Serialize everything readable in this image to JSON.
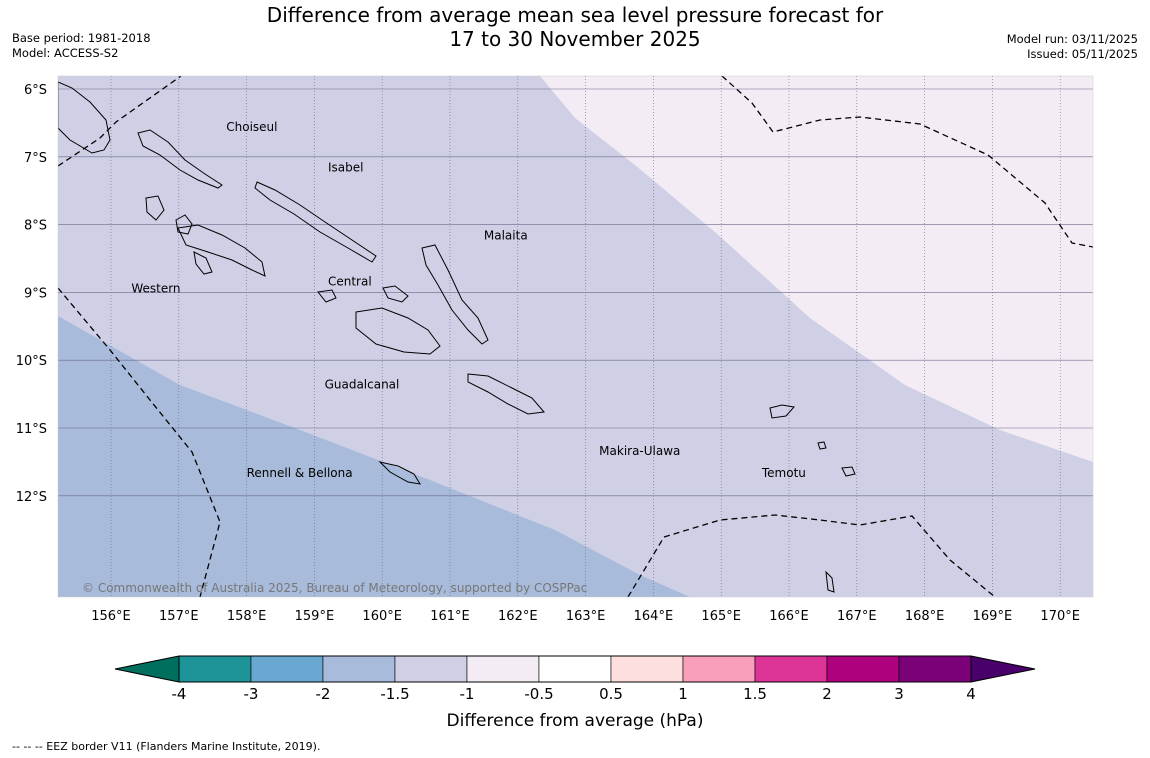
{
  "header": {
    "title_line1": "Difference from average mean sea level pressure forecast for",
    "title_line2": "17 to 30 November 2025",
    "base_period": "Base period: 1981-2018",
    "model": "Model: ACCESS-S2",
    "model_run": "Model run: 03/11/2025",
    "issued": "Issued: 05/11/2025"
  },
  "map": {
    "lat_labels": [
      "6°S",
      "7°S",
      "8°S",
      "9°S",
      "10°S",
      "11°S",
      "12°S"
    ],
    "lat_values": [
      -6,
      -7,
      -8,
      -9,
      -10,
      -11,
      -12
    ],
    "lon_labels": [
      "156°E",
      "157°E",
      "158°E",
      "159°E",
      "160°E",
      "161°E",
      "162°E",
      "163°E",
      "164°E",
      "165°E",
      "166°E",
      "167°E",
      "168°E",
      "169°E",
      "170°E"
    ],
    "lon_values": [
      156,
      157,
      158,
      159,
      160,
      161,
      162,
      163,
      164,
      165,
      166,
      167,
      168,
      169,
      170
    ],
    "region_labels": [
      {
        "text": "Choiseul",
        "lon": 157.7,
        "lat": -6.62
      },
      {
        "text": "Isabel",
        "lon": 159.2,
        "lat": -7.22
      },
      {
        "text": "Malaita",
        "lon": 161.5,
        "lat": -8.22
      },
      {
        "text": "Central",
        "lon": 159.2,
        "lat": -8.9
      },
      {
        "text": "Western",
        "lon": 156.3,
        "lat": -9.0
      },
      {
        "text": "Guadalcanal",
        "lon": 159.15,
        "lat": -10.42
      },
      {
        "text": "Makira-Ulawa",
        "lon": 163.2,
        "lat": -11.4
      },
      {
        "text": "Rennell & Bellona",
        "lon": 158.0,
        "lat": -11.72
      },
      {
        "text": "Temotu",
        "lon": 165.6,
        "lat": -11.72
      }
    ],
    "copyright": "© Commonwealth of Australia 2025, Bureau of Meteorology, supported by COSPPac",
    "zone_colors": {
      "minus1_5_to_minus1": "#cfd0e6",
      "minus2_to_minus1_5": "#a8bbdb",
      "minus1_to_minus0_5": "#f4ecf5"
    }
  },
  "colorbar": {
    "title": "Difference from average (hPa)",
    "tick_labels": [
      "-4",
      "-3",
      "-2",
      "-1.5",
      "-1",
      "-0.5",
      "0.5",
      "1",
      "1.5",
      "2",
      "3",
      "4"
    ],
    "colors": [
      "#006f5e",
      "#1f9498",
      "#68a8d1",
      "#a8bbdb",
      "#cfd0e6",
      "#f4ecf5",
      "#ffffff",
      "#fde0dd",
      "#f99fbb",
      "#dd3497",
      "#ae017e",
      "#7a0177",
      "#49006a"
    ]
  },
  "footnote": "--  --  -- EEZ border V11 (Flanders Marine Institute, 2019)."
}
